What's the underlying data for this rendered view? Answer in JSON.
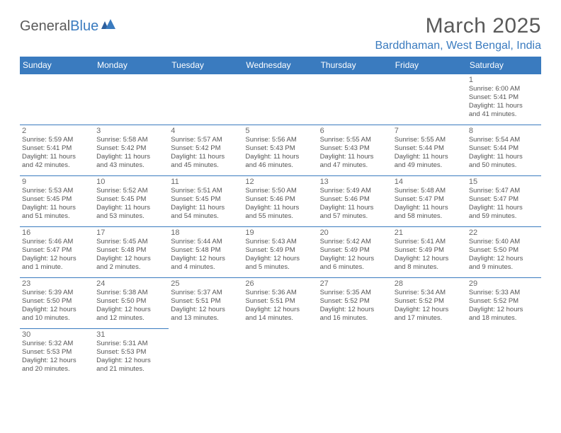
{
  "logo": {
    "text1": "General",
    "text2": "Blue"
  },
  "title": "March 2025",
  "location": "Barddhaman, West Bengal, India",
  "headers": [
    "Sunday",
    "Monday",
    "Tuesday",
    "Wednesday",
    "Thursday",
    "Friday",
    "Saturday"
  ],
  "colors": {
    "accent": "#3a7bbf",
    "text": "#5a5a5a",
    "info": "#555555",
    "background": "#ffffff"
  },
  "weeks": [
    [
      null,
      null,
      null,
      null,
      null,
      null,
      {
        "d": "1",
        "sr": "Sunrise: 6:00 AM",
        "ss": "Sunset: 5:41 PM",
        "dl1": "Daylight: 11 hours",
        "dl2": "and 41 minutes."
      }
    ],
    [
      {
        "d": "2",
        "sr": "Sunrise: 5:59 AM",
        "ss": "Sunset: 5:41 PM",
        "dl1": "Daylight: 11 hours",
        "dl2": "and 42 minutes."
      },
      {
        "d": "3",
        "sr": "Sunrise: 5:58 AM",
        "ss": "Sunset: 5:42 PM",
        "dl1": "Daylight: 11 hours",
        "dl2": "and 43 minutes."
      },
      {
        "d": "4",
        "sr": "Sunrise: 5:57 AM",
        "ss": "Sunset: 5:42 PM",
        "dl1": "Daylight: 11 hours",
        "dl2": "and 45 minutes."
      },
      {
        "d": "5",
        "sr": "Sunrise: 5:56 AM",
        "ss": "Sunset: 5:43 PM",
        "dl1": "Daylight: 11 hours",
        "dl2": "and 46 minutes."
      },
      {
        "d": "6",
        "sr": "Sunrise: 5:55 AM",
        "ss": "Sunset: 5:43 PM",
        "dl1": "Daylight: 11 hours",
        "dl2": "and 47 minutes."
      },
      {
        "d": "7",
        "sr": "Sunrise: 5:55 AM",
        "ss": "Sunset: 5:44 PM",
        "dl1": "Daylight: 11 hours",
        "dl2": "and 49 minutes."
      },
      {
        "d": "8",
        "sr": "Sunrise: 5:54 AM",
        "ss": "Sunset: 5:44 PM",
        "dl1": "Daylight: 11 hours",
        "dl2": "and 50 minutes."
      }
    ],
    [
      {
        "d": "9",
        "sr": "Sunrise: 5:53 AM",
        "ss": "Sunset: 5:45 PM",
        "dl1": "Daylight: 11 hours",
        "dl2": "and 51 minutes."
      },
      {
        "d": "10",
        "sr": "Sunrise: 5:52 AM",
        "ss": "Sunset: 5:45 PM",
        "dl1": "Daylight: 11 hours",
        "dl2": "and 53 minutes."
      },
      {
        "d": "11",
        "sr": "Sunrise: 5:51 AM",
        "ss": "Sunset: 5:45 PM",
        "dl1": "Daylight: 11 hours",
        "dl2": "and 54 minutes."
      },
      {
        "d": "12",
        "sr": "Sunrise: 5:50 AM",
        "ss": "Sunset: 5:46 PM",
        "dl1": "Daylight: 11 hours",
        "dl2": "and 55 minutes."
      },
      {
        "d": "13",
        "sr": "Sunrise: 5:49 AM",
        "ss": "Sunset: 5:46 PM",
        "dl1": "Daylight: 11 hours",
        "dl2": "and 57 minutes."
      },
      {
        "d": "14",
        "sr": "Sunrise: 5:48 AM",
        "ss": "Sunset: 5:47 PM",
        "dl1": "Daylight: 11 hours",
        "dl2": "and 58 minutes."
      },
      {
        "d": "15",
        "sr": "Sunrise: 5:47 AM",
        "ss": "Sunset: 5:47 PM",
        "dl1": "Daylight: 11 hours",
        "dl2": "and 59 minutes."
      }
    ],
    [
      {
        "d": "16",
        "sr": "Sunrise: 5:46 AM",
        "ss": "Sunset: 5:47 PM",
        "dl1": "Daylight: 12 hours",
        "dl2": "and 1 minute."
      },
      {
        "d": "17",
        "sr": "Sunrise: 5:45 AM",
        "ss": "Sunset: 5:48 PM",
        "dl1": "Daylight: 12 hours",
        "dl2": "and 2 minutes."
      },
      {
        "d": "18",
        "sr": "Sunrise: 5:44 AM",
        "ss": "Sunset: 5:48 PM",
        "dl1": "Daylight: 12 hours",
        "dl2": "and 4 minutes."
      },
      {
        "d": "19",
        "sr": "Sunrise: 5:43 AM",
        "ss": "Sunset: 5:49 PM",
        "dl1": "Daylight: 12 hours",
        "dl2": "and 5 minutes."
      },
      {
        "d": "20",
        "sr": "Sunrise: 5:42 AM",
        "ss": "Sunset: 5:49 PM",
        "dl1": "Daylight: 12 hours",
        "dl2": "and 6 minutes."
      },
      {
        "d": "21",
        "sr": "Sunrise: 5:41 AM",
        "ss": "Sunset: 5:49 PM",
        "dl1": "Daylight: 12 hours",
        "dl2": "and 8 minutes."
      },
      {
        "d": "22",
        "sr": "Sunrise: 5:40 AM",
        "ss": "Sunset: 5:50 PM",
        "dl1": "Daylight: 12 hours",
        "dl2": "and 9 minutes."
      }
    ],
    [
      {
        "d": "23",
        "sr": "Sunrise: 5:39 AM",
        "ss": "Sunset: 5:50 PM",
        "dl1": "Daylight: 12 hours",
        "dl2": "and 10 minutes."
      },
      {
        "d": "24",
        "sr": "Sunrise: 5:38 AM",
        "ss": "Sunset: 5:50 PM",
        "dl1": "Daylight: 12 hours",
        "dl2": "and 12 minutes."
      },
      {
        "d": "25",
        "sr": "Sunrise: 5:37 AM",
        "ss": "Sunset: 5:51 PM",
        "dl1": "Daylight: 12 hours",
        "dl2": "and 13 minutes."
      },
      {
        "d": "26",
        "sr": "Sunrise: 5:36 AM",
        "ss": "Sunset: 5:51 PM",
        "dl1": "Daylight: 12 hours",
        "dl2": "and 14 minutes."
      },
      {
        "d": "27",
        "sr": "Sunrise: 5:35 AM",
        "ss": "Sunset: 5:52 PM",
        "dl1": "Daylight: 12 hours",
        "dl2": "and 16 minutes."
      },
      {
        "d": "28",
        "sr": "Sunrise: 5:34 AM",
        "ss": "Sunset: 5:52 PM",
        "dl1": "Daylight: 12 hours",
        "dl2": "and 17 minutes."
      },
      {
        "d": "29",
        "sr": "Sunrise: 5:33 AM",
        "ss": "Sunset: 5:52 PM",
        "dl1": "Daylight: 12 hours",
        "dl2": "and 18 minutes."
      }
    ],
    [
      {
        "d": "30",
        "sr": "Sunrise: 5:32 AM",
        "ss": "Sunset: 5:53 PM",
        "dl1": "Daylight: 12 hours",
        "dl2": "and 20 minutes."
      },
      {
        "d": "31",
        "sr": "Sunrise: 5:31 AM",
        "ss": "Sunset: 5:53 PM",
        "dl1": "Daylight: 12 hours",
        "dl2": "and 21 minutes."
      },
      null,
      null,
      null,
      null,
      null
    ]
  ]
}
